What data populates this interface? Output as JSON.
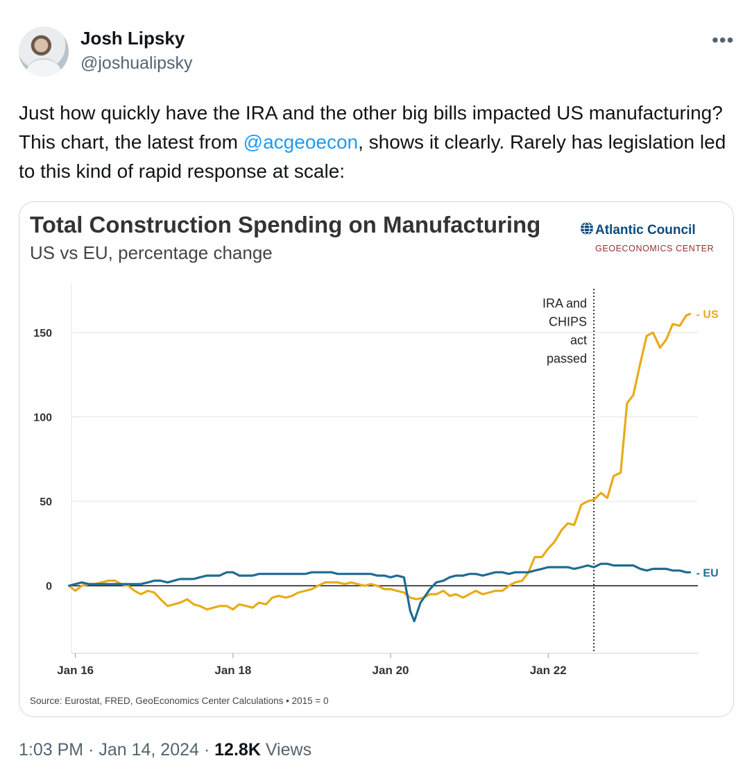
{
  "tweet": {
    "author_name": "Josh Lipsky",
    "author_handle": "@joshualipsky",
    "text_before": "Just how quickly have the IRA and the other big bills impacted US manufacturing? This chart, the latest from ",
    "mention": "@acgeoecon",
    "text_after": ", shows it clearly. Rarely has legislation led to this kind of rapid response at scale:",
    "time": "1:03 PM",
    "separator": "·",
    "date": "Jan 14, 2024",
    "views_count": "12.8K",
    "views_label": "Views",
    "more_label": "•••"
  },
  "brand": {
    "name": "Atlantic Council",
    "sub": "GEOECONOMICS CENTER",
    "color": "#0c4a7d",
    "sub_color": "#9b2d2d"
  },
  "chart_data": {
    "type": "line",
    "title": "Total Construction Spending on Manufacturing",
    "subtitle": "US vs EU, percentage change",
    "source": "Source: Eurostat, FRED, GeoEconomics Center Calculations • 2015 = 0",
    "x_ticks": [
      {
        "value": 2016.0,
        "label": "Jan 16"
      },
      {
        "value": 2018.0,
        "label": "Jan 18"
      },
      {
        "value": 2020.0,
        "label": "Jan 20"
      },
      {
        "value": 2022.0,
        "label": "Jan 22"
      }
    ],
    "y_ticks": [
      0,
      50,
      100,
      150
    ],
    "xlim": [
      2015.95,
      2023.9
    ],
    "ylim": [
      -40,
      180
    ],
    "grid": true,
    "annotation": {
      "x": 2022.58,
      "lines": [
        "IRA and",
        "CHIPS",
        "act",
        "passed"
      ]
    },
    "series": [
      {
        "name": "US",
        "color": "#e8ab18",
        "points": [
          [
            2015.92,
            0
          ],
          [
            2016.0,
            -3
          ],
          [
            2016.08,
            0
          ],
          [
            2016.17,
            1
          ],
          [
            2016.25,
            1
          ],
          [
            2016.33,
            2
          ],
          [
            2016.42,
            3
          ],
          [
            2016.5,
            3
          ],
          [
            2016.58,
            1
          ],
          [
            2016.67,
            0
          ],
          [
            2016.75,
            -3
          ],
          [
            2016.83,
            -5
          ],
          [
            2016.92,
            -3
          ],
          [
            2017.0,
            -4
          ],
          [
            2017.08,
            -8
          ],
          [
            2017.17,
            -12
          ],
          [
            2017.25,
            -11
          ],
          [
            2017.33,
            -10
          ],
          [
            2017.42,
            -8
          ],
          [
            2017.5,
            -11
          ],
          [
            2017.58,
            -12
          ],
          [
            2017.67,
            -14
          ],
          [
            2017.75,
            -13
          ],
          [
            2017.83,
            -12
          ],
          [
            2017.92,
            -12
          ],
          [
            2018.0,
            -14
          ],
          [
            2018.08,
            -11
          ],
          [
            2018.17,
            -12
          ],
          [
            2018.25,
            -13
          ],
          [
            2018.33,
            -10
          ],
          [
            2018.42,
            -11
          ],
          [
            2018.5,
            -7
          ],
          [
            2018.58,
            -6
          ],
          [
            2018.67,
            -7
          ],
          [
            2018.75,
            -6
          ],
          [
            2018.83,
            -4
          ],
          [
            2018.92,
            -3
          ],
          [
            2019.0,
            -2
          ],
          [
            2019.08,
            0
          ],
          [
            2019.17,
            2
          ],
          [
            2019.25,
            2
          ],
          [
            2019.33,
            2
          ],
          [
            2019.42,
            1
          ],
          [
            2019.5,
            2
          ],
          [
            2019.58,
            1
          ],
          [
            2019.67,
            0
          ],
          [
            2019.75,
            1
          ],
          [
            2019.83,
            0
          ],
          [
            2019.92,
            -2
          ],
          [
            2020.0,
            -2
          ],
          [
            2020.08,
            -3
          ],
          [
            2020.17,
            -4
          ],
          [
            2020.25,
            -7
          ],
          [
            2020.33,
            -8
          ],
          [
            2020.42,
            -7
          ],
          [
            2020.5,
            -5
          ],
          [
            2020.58,
            -5
          ],
          [
            2020.67,
            -3
          ],
          [
            2020.75,
            -6
          ],
          [
            2020.83,
            -5
          ],
          [
            2020.92,
            -7
          ],
          [
            2021.0,
            -5
          ],
          [
            2021.08,
            -3
          ],
          [
            2021.17,
            -5
          ],
          [
            2021.25,
            -4
          ],
          [
            2021.33,
            -3
          ],
          [
            2021.42,
            -3
          ],
          [
            2021.5,
            0
          ],
          [
            2021.58,
            2
          ],
          [
            2021.67,
            3
          ],
          [
            2021.75,
            8
          ],
          [
            2021.83,
            17
          ],
          [
            2021.92,
            17
          ],
          [
            2022.0,
            22
          ],
          [
            2022.08,
            26
          ],
          [
            2022.17,
            33
          ],
          [
            2022.25,
            37
          ],
          [
            2022.33,
            36
          ],
          [
            2022.42,
            48
          ],
          [
            2022.5,
            50
          ],
          [
            2022.58,
            51
          ],
          [
            2022.67,
            55
          ],
          [
            2022.75,
            52
          ],
          [
            2022.83,
            65
          ],
          [
            2022.92,
            67
          ],
          [
            2023.0,
            108
          ],
          [
            2023.08,
            113
          ],
          [
            2023.17,
            132
          ],
          [
            2023.25,
            148
          ],
          [
            2023.33,
            150
          ],
          [
            2023.42,
            141
          ],
          [
            2023.5,
            146
          ],
          [
            2023.58,
            155
          ],
          [
            2023.67,
            154
          ],
          [
            2023.75,
            160
          ],
          [
            2023.8,
            161
          ]
        ]
      },
      {
        "name": "EU",
        "color": "#1f6b93",
        "points": [
          [
            2015.92,
            0
          ],
          [
            2016.0,
            1
          ],
          [
            2016.08,
            2
          ],
          [
            2016.17,
            1
          ],
          [
            2016.25,
            1
          ],
          [
            2016.33,
            1
          ],
          [
            2016.42,
            1
          ],
          [
            2016.5,
            1
          ],
          [
            2016.58,
            1
          ],
          [
            2016.67,
            1
          ],
          [
            2016.75,
            1
          ],
          [
            2016.83,
            1
          ],
          [
            2016.92,
            2
          ],
          [
            2017.0,
            3
          ],
          [
            2017.08,
            3
          ],
          [
            2017.17,
            2
          ],
          [
            2017.25,
            3
          ],
          [
            2017.33,
            4
          ],
          [
            2017.42,
            4
          ],
          [
            2017.5,
            4
          ],
          [
            2017.58,
            5
          ],
          [
            2017.67,
            6
          ],
          [
            2017.75,
            6
          ],
          [
            2017.83,
            6
          ],
          [
            2017.92,
            8
          ],
          [
            2018.0,
            8
          ],
          [
            2018.08,
            6
          ],
          [
            2018.17,
            6
          ],
          [
            2018.25,
            6
          ],
          [
            2018.33,
            7
          ],
          [
            2018.42,
            7
          ],
          [
            2018.5,
            7
          ],
          [
            2018.58,
            7
          ],
          [
            2018.67,
            7
          ],
          [
            2018.75,
            7
          ],
          [
            2018.83,
            7
          ],
          [
            2018.92,
            7
          ],
          [
            2019.0,
            8
          ],
          [
            2019.08,
            8
          ],
          [
            2019.17,
            8
          ],
          [
            2019.25,
            8
          ],
          [
            2019.33,
            7
          ],
          [
            2019.42,
            7
          ],
          [
            2019.5,
            7
          ],
          [
            2019.58,
            7
          ],
          [
            2019.67,
            7
          ],
          [
            2019.75,
            7
          ],
          [
            2019.83,
            6
          ],
          [
            2019.92,
            6
          ],
          [
            2020.0,
            5
          ],
          [
            2020.08,
            6
          ],
          [
            2020.17,
            5
          ],
          [
            2020.25,
            -15
          ],
          [
            2020.3,
            -21
          ],
          [
            2020.38,
            -10
          ],
          [
            2020.5,
            -2
          ],
          [
            2020.58,
            2
          ],
          [
            2020.67,
            3
          ],
          [
            2020.75,
            5
          ],
          [
            2020.83,
            6
          ],
          [
            2020.92,
            6
          ],
          [
            2021.0,
            7
          ],
          [
            2021.08,
            7
          ],
          [
            2021.17,
            6
          ],
          [
            2021.25,
            7
          ],
          [
            2021.33,
            8
          ],
          [
            2021.42,
            8
          ],
          [
            2021.5,
            7
          ],
          [
            2021.58,
            8
          ],
          [
            2021.67,
            8
          ],
          [
            2021.75,
            8
          ],
          [
            2021.83,
            9
          ],
          [
            2021.92,
            10
          ],
          [
            2022.0,
            11
          ],
          [
            2022.08,
            11
          ],
          [
            2022.17,
            11
          ],
          [
            2022.25,
            11
          ],
          [
            2022.33,
            10
          ],
          [
            2022.42,
            11
          ],
          [
            2022.5,
            12
          ],
          [
            2022.58,
            11
          ],
          [
            2022.67,
            13
          ],
          [
            2022.75,
            13
          ],
          [
            2022.83,
            12
          ],
          [
            2022.92,
            12
          ],
          [
            2023.0,
            12
          ],
          [
            2023.08,
            12
          ],
          [
            2023.17,
            10
          ],
          [
            2023.25,
            9
          ],
          [
            2023.33,
            10
          ],
          [
            2023.42,
            10
          ],
          [
            2023.5,
            10
          ],
          [
            2023.58,
            9
          ],
          [
            2023.67,
            9
          ],
          [
            2023.75,
            8
          ],
          [
            2023.8,
            8
          ]
        ]
      }
    ]
  }
}
